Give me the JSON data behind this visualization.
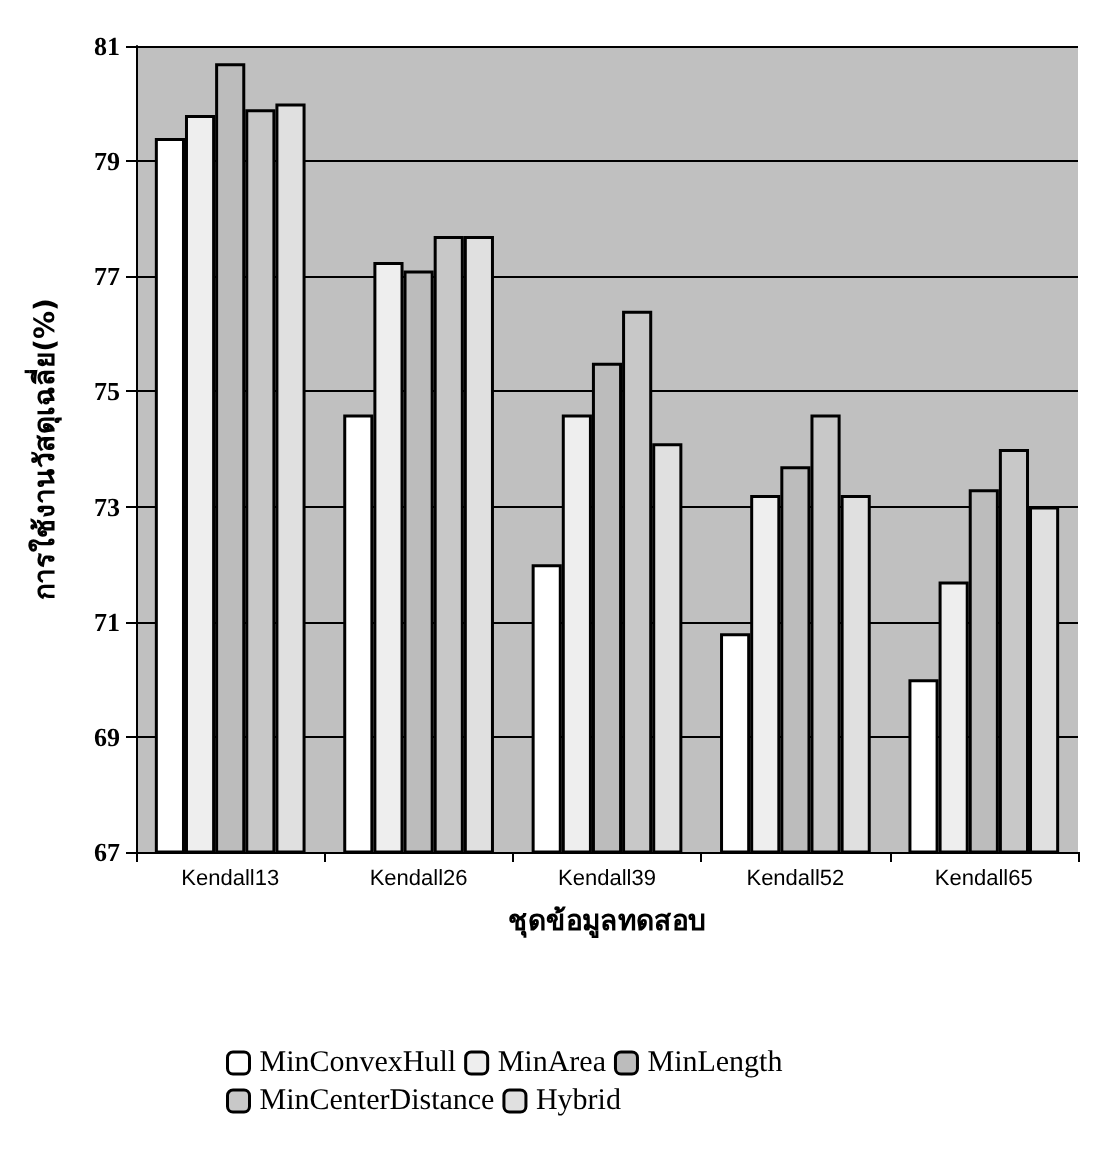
{
  "chart_data": {
    "type": "bar",
    "xlabel": "ชุดข้อมูลทดสอบ",
    "ylabel": "การใช้งานวัสดุเฉลี่ย(%)",
    "categories": [
      "Kendall13",
      "Kendall26",
      "Kendall39",
      "Kendall52",
      "Kendall65"
    ],
    "series": [
      {
        "name": "MinConvexHull",
        "color": "#ffffff",
        "values": [
          79.4,
          74.6,
          72.0,
          70.8,
          70.0
        ]
      },
      {
        "name": "MinArea",
        "color": "#eeeeee",
        "values": [
          79.8,
          77.25,
          74.6,
          73.2,
          71.7
        ]
      },
      {
        "name": "MinLength",
        "color": "#bcbcbc",
        "values": [
          80.7,
          77.1,
          75.5,
          73.7,
          73.3
        ]
      },
      {
        "name": "MinCenterDistance",
        "color": "#c8c8c8",
        "values": [
          79.9,
          77.7,
          76.4,
          74.6,
          74.0
        ]
      },
      {
        "name": "Hybrid",
        "color": "#e0e0e0",
        "values": [
          80.0,
          77.7,
          74.1,
          73.2,
          73.0
        ]
      }
    ],
    "ylim": [
      67,
      81
    ],
    "yticks": [
      67,
      69,
      71,
      73,
      75,
      77,
      79,
      81
    ],
    "grid": "y",
    "legend": "bottom"
  }
}
